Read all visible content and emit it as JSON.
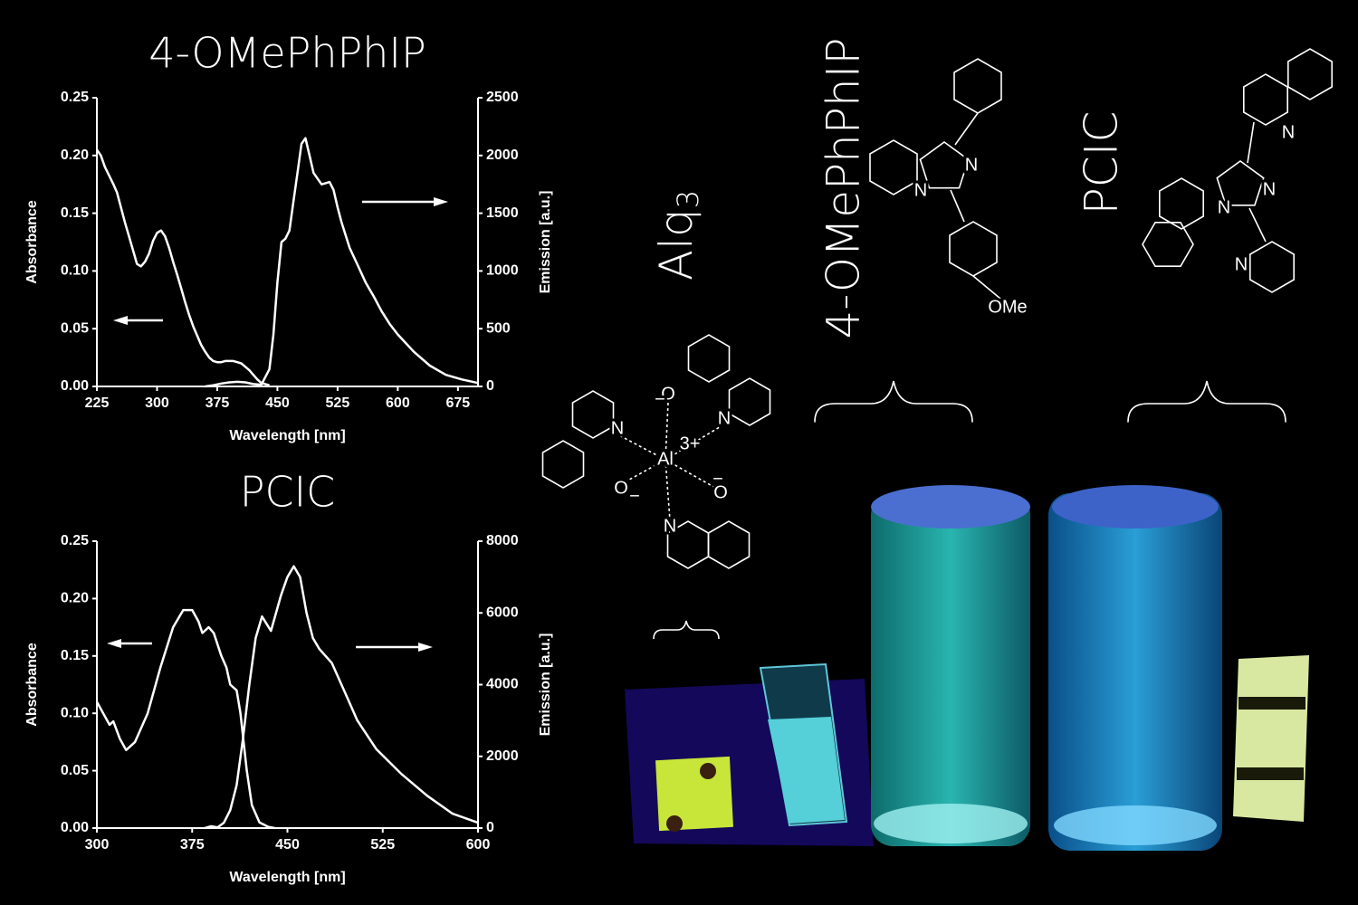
{
  "chart_data": [
    {
      "type": "line",
      "title": "4-OMePhPhIP",
      "x_label": "Wavelength [nm]",
      "y_label": "Absorbance",
      "y2_label": "Emission [a.u.]",
      "xlim": [
        225,
        700
      ],
      "xticks": [
        225,
        300,
        375,
        450,
        525,
        600,
        675
      ],
      "ylim": [
        0,
        0.25
      ],
      "yticks": [
        {
          "value": 0,
          "label": "0.00"
        },
        {
          "value": 0.05,
          "label": "0.05"
        },
        {
          "value": 0.1,
          "label": "0.10"
        },
        {
          "value": 0.15,
          "label": "0.15"
        },
        {
          "value": 0.2,
          "label": "0.20"
        },
        {
          "value": 0.25,
          "label": "0.25"
        }
      ],
      "y2lim": [
        0,
        2500
      ],
      "y2ticks": [
        0,
        500,
        1000,
        1500,
        2000,
        2500
      ],
      "series": [
        {
          "color": "#ffffff",
          "x": [
            225,
            230,
            235,
            240,
            245,
            250,
            255,
            260,
            265,
            270,
            275,
            280,
            285,
            290,
            295,
            300,
            305,
            310,
            315,
            320,
            325,
            330,
            335,
            340,
            345,
            350,
            355,
            360,
            365,
            370,
            375,
            380,
            385,
            390,
            395,
            400,
            405,
            410,
            415,
            420,
            425,
            430,
            435,
            440
          ],
          "values": [
            0.205,
            0.2,
            0.19,
            0.183,
            0.176,
            0.168,
            0.155,
            0.142,
            0.13,
            0.118,
            0.106,
            0.104,
            0.108,
            0.115,
            0.126,
            0.133,
            0.135,
            0.13,
            0.12,
            0.108,
            0.097,
            0.085,
            0.073,
            0.062,
            0.052,
            0.044,
            0.036,
            0.03,
            0.025,
            0.022,
            0.021,
            0.021,
            0.022,
            0.022,
            0.022,
            0.021,
            0.02,
            0.017,
            0.014,
            0.01,
            0.006,
            0.003,
            0.002,
            0.001
          ]
        },
        {
          "color": "#ffffff",
          "axis": "y2",
          "x": [
            360,
            370,
            380,
            390,
            400,
            410,
            420,
            430,
            440,
            445,
            450,
            455,
            460,
            465,
            470,
            475,
            480,
            485,
            490,
            495,
            500,
            505,
            510,
            515,
            520,
            525,
            530,
            540,
            550,
            560,
            570,
            580,
            590,
            600,
            620,
            640,
            660,
            680,
            700
          ],
          "values": [
            0,
            10,
            25,
            35,
            40,
            35,
            20,
            15,
            150,
            450,
            900,
            1250,
            1280,
            1350,
            1600,
            1850,
            2100,
            2150,
            2000,
            1850,
            1800,
            1750,
            1760,
            1770,
            1700,
            1550,
            1420,
            1200,
            1050,
            900,
            780,
            650,
            540,
            450,
            300,
            180,
            100,
            60,
            30
          ]
        }
      ]
    },
    {
      "type": "line",
      "title": "PCIC",
      "x_label": "Wavelength [nm]",
      "y_label": "Absorbance",
      "y2_label": "Emission [a.u.]",
      "xlim": [
        300,
        600
      ],
      "xticks": [
        300,
        375,
        450,
        525,
        600
      ],
      "ylim": [
        0,
        0.25
      ],
      "yticks": [
        {
          "value": 0,
          "label": "0.00"
        },
        {
          "value": 0.05,
          "label": "0.05"
        },
        {
          "value": 0.1,
          "label": "0.10"
        },
        {
          "value": 0.15,
          "label": "0.15"
        },
        {
          "value": 0.2,
          "label": "0.20"
        },
        {
          "value": 0.25,
          "label": "0.25"
        }
      ],
      "y2lim": [
        0,
        8000
      ],
      "y2ticks": [
        0,
        2000,
        4000,
        6000,
        8000
      ],
      "series": [
        {
          "color": "#ffffff",
          "x": [
            300,
            305,
            310,
            313,
            318,
            323,
            330,
            340,
            350,
            360,
            368,
            375,
            380,
            383,
            388,
            392,
            398,
            402,
            405,
            410,
            413,
            418,
            422,
            428,
            435,
            440
          ],
          "values": [
            0.11,
            0.1,
            0.09,
            0.093,
            0.078,
            0.068,
            0.075,
            0.1,
            0.14,
            0.175,
            0.19,
            0.19,
            0.18,
            0.17,
            0.175,
            0.17,
            0.15,
            0.14,
            0.125,
            0.12,
            0.1,
            0.05,
            0.02,
            0.005,
            0.001,
            0
          ]
        },
        {
          "color": "#ffffff",
          "axis": "y2",
          "x": [
            385,
            390,
            395,
            400,
            405,
            410,
            415,
            420,
            425,
            430,
            437,
            445,
            450,
            455,
            460,
            465,
            470,
            475,
            485,
            495,
            505,
            520,
            540,
            560,
            580,
            600
          ],
          "values": [
            0,
            50,
            20,
            150,
            500,
            1200,
            2500,
            4000,
            5300,
            5900,
            5500,
            6500,
            7000,
            7300,
            7000,
            6000,
            5300,
            5000,
            4600,
            3800,
            3000,
            2200,
            1500,
            900,
            400,
            150
          ]
        }
      ]
    }
  ],
  "labels": {
    "alq": "Alq",
    "alq_sub": "3",
    "phphip": "4-OMePhPhIP",
    "pcic": "PCIC"
  },
  "structures": {
    "alq3": [
      "N",
      "O",
      "−",
      "Al",
      "3+",
      "O",
      "−",
      "N",
      "O",
      "−",
      "N"
    ],
    "phphip": [
      "N",
      "N",
      "OMe"
    ],
    "pcic": [
      "N",
      "N",
      "N",
      "N"
    ]
  }
}
